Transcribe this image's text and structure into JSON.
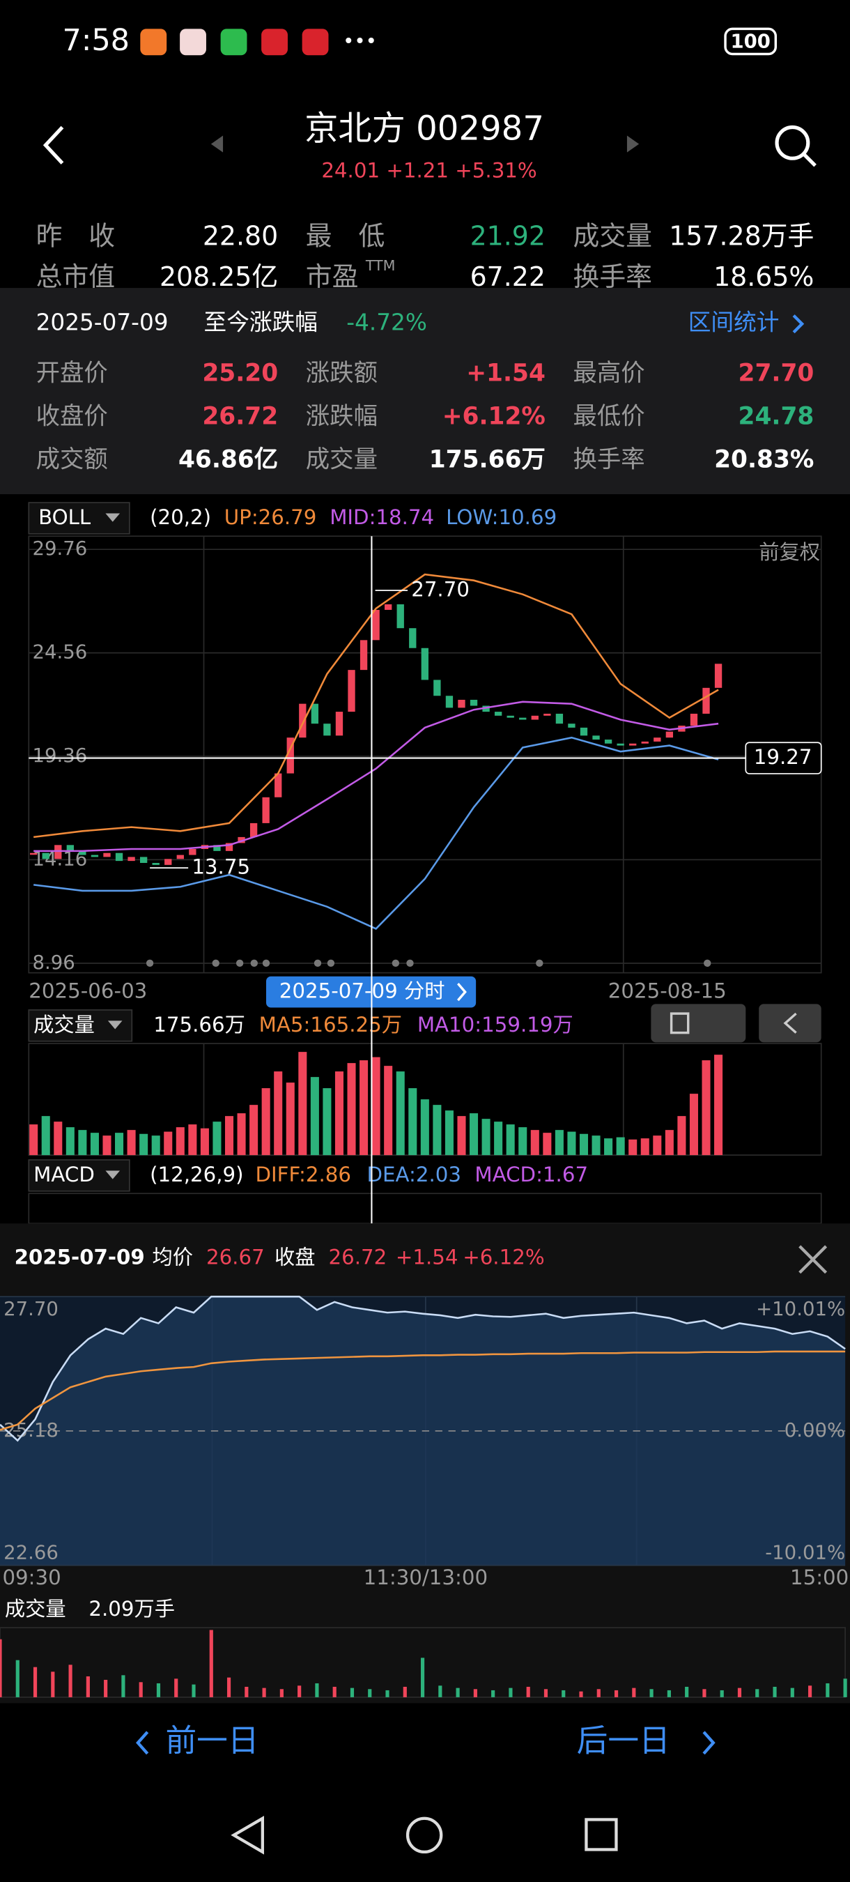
{
  "status_bar": {
    "time": "7:58",
    "battery": "100"
  },
  "header": {
    "title": "京北方 002987",
    "quote": "24.01 +1.21 +5.31%"
  },
  "summary": {
    "rows": [
      [
        "昨　收",
        "22.80",
        "最　低",
        "21.92",
        "成交量",
        "157.28万手"
      ],
      [
        "总市值",
        "208.25亿",
        "市盈",
        "67.22",
        "换手率",
        "18.65%"
      ]
    ],
    "ttm": "TTM"
  },
  "period": {
    "date": "2025-07-09",
    "label": "至今涨跌幅",
    "change": "-4.72%",
    "stats_link": "区间统计"
  },
  "day_stats": {
    "rows": [
      [
        "开盘价",
        "25.20",
        "涨跌额",
        "+1.54",
        "最高价",
        "27.70"
      ],
      [
        "收盘价",
        "26.72",
        "涨跌幅",
        "+6.12%",
        "最低价",
        "24.78"
      ],
      [
        "成交额",
        "46.86亿",
        "成交量",
        "175.66万",
        "换手率",
        "20.83%"
      ]
    ]
  },
  "kline": {
    "indicator": "BOLL",
    "params": "(20,2)",
    "up": "UP:26.79",
    "mid": "MID:18.74",
    "low": "LOW:10.69",
    "adjust": "前复权",
    "ylim": [
      8.96,
      29.76
    ],
    "yticks": [
      29.76,
      24.56,
      19.36,
      14.16,
      8.96
    ],
    "crosshair_value": 19.27,
    "high_label": {
      "value": 27.7,
      "label": "27.70"
    },
    "low_label": 13.75,
    "xlabels": [
      "2025-06-03",
      "2025-08-15"
    ],
    "selected": "2025-07-09 分时",
    "closes": [
      14.5,
      14.2,
      14.9,
      14.6,
      14.4,
      14.3,
      14.5,
      14.1,
      14.3,
      14.0,
      13.9,
      14.2,
      14.4,
      14.7,
      14.9,
      14.6,
      15.0,
      15.3,
      16.0,
      17.3,
      18.5,
      20.3,
      22.0,
      21.0,
      20.4,
      21.6,
      23.7,
      25.2,
      26.72,
      27.0,
      25.8,
      24.8,
      23.2,
      22.4,
      21.8,
      22.2,
      21.9,
      21.6,
      21.4,
      21.3,
      21.2,
      21.4,
      21.5,
      21.0,
      20.8,
      20.4,
      20.2,
      20.0,
      19.9,
      20.0,
      20.1,
      20.3,
      20.6,
      20.9,
      21.5,
      22.8,
      24.01
    ],
    "boll_x": [
      0,
      4,
      8,
      12,
      16,
      20,
      24,
      28,
      32,
      36,
      40,
      44,
      48,
      52,
      56
    ],
    "boll": [
      {
        "name": "UP",
        "color": "#f08a3a",
        "values": [
          15.3,
          15.6,
          15.8,
          15.6,
          16.0,
          18.5,
          23.5,
          26.79,
          28.5,
          28.2,
          27.5,
          26.5,
          23.0,
          21.3,
          22.7
        ]
      },
      {
        "name": "MID",
        "color": "#c25be6",
        "values": [
          14.6,
          14.6,
          14.7,
          14.7,
          14.9,
          15.7,
          17.2,
          18.74,
          20.8,
          21.7,
          22.1,
          22.0,
          21.2,
          20.7,
          21.0
        ]
      },
      {
        "name": "LOW",
        "color": "#5a9ae8",
        "values": [
          12.9,
          12.6,
          12.6,
          12.8,
          13.4,
          12.6,
          11.8,
          10.69,
          13.2,
          16.8,
          19.8,
          20.3,
          19.6,
          19.9,
          19.2
        ]
      }
    ]
  },
  "volume": {
    "label": "成交量",
    "value": "175.66万",
    "ma5": "MA5:165.25万",
    "ma10": "MA10:159.19万",
    "ylim": [
      0,
      200
    ],
    "values": [
      55,
      70,
      60,
      50,
      45,
      40,
      35,
      40,
      45,
      38,
      35,
      42,
      50,
      55,
      48,
      60,
      70,
      75,
      90,
      120,
      150,
      130,
      185,
      140,
      120,
      150,
      165,
      170,
      175.66,
      160,
      150,
      120,
      100,
      90,
      80,
      70,
      75,
      65,
      60,
      55,
      50,
      45,
      40,
      45,
      42,
      38,
      35,
      30,
      32,
      28,
      30,
      35,
      45,
      70,
      110,
      170,
      180
    ]
  },
  "macd": {
    "label": "MACD",
    "params": "(12,26,9)",
    "diff": "DIFF:2.86",
    "dea": "DEA:2.03",
    "macd": "MACD:1.67"
  },
  "intraday": {
    "date": "2025-07-09",
    "avg_label": "均价",
    "avg": "26.67",
    "close_label": "收盘",
    "close": "26.72",
    "change": "+1.54",
    "pct": "+6.12%",
    "ylim": [
      22.66,
      27.7
    ],
    "yticks": [
      {
        "value": 27.7,
        "label": "27.70"
      },
      25.18,
      22.66
    ],
    "pct_labels": [
      "+10.01%",
      "0.00%",
      "-10.01%"
    ],
    "xlabels": [
      "09:30",
      "11:30/13:00",
      "15:00"
    ],
    "volume_label": "成交量",
    "volume_value": "2.09万手",
    "prices": [
      25.3,
      25.0,
      25.4,
      26.1,
      26.6,
      26.9,
      27.1,
      27.0,
      27.3,
      27.2,
      27.5,
      27.4,
      27.7,
      27.7,
      27.7,
      27.7,
      27.7,
      27.7,
      27.45,
      27.6,
      27.5,
      27.45,
      27.4,
      27.42,
      27.38,
      27.35,
      27.3,
      27.36,
      27.33,
      27.32,
      27.35,
      27.38,
      27.3,
      27.34,
      27.36,
      27.38,
      27.4,
      27.35,
      27.3,
      27.2,
      27.25,
      27.1,
      27.2,
      27.15,
      27.1,
      27.0,
      27.05,
      26.95,
      26.72
    ],
    "avgs": [
      25.2,
      25.3,
      25.6,
      25.8,
      26.0,
      26.1,
      26.2,
      26.25,
      26.3,
      26.33,
      26.36,
      26.38,
      26.45,
      26.48,
      26.5,
      26.52,
      26.53,
      26.54,
      26.55,
      26.56,
      26.57,
      26.58,
      26.58,
      26.59,
      26.6,
      26.6,
      26.61,
      26.61,
      26.62,
      26.62,
      26.63,
      26.63,
      26.63,
      26.64,
      26.64,
      26.64,
      26.65,
      26.65,
      26.65,
      26.65,
      26.66,
      26.66,
      26.66,
      26.66,
      26.67,
      26.67,
      26.67,
      26.67,
      26.67
    ],
    "vol_ylim": [
      0,
      6000
    ],
    "volumes": [
      5000,
      3200,
      2600,
      2200,
      2800,
      1800,
      1500,
      1900,
      1300,
      1200,
      1600,
      1100,
      5800,
      1700,
      900,
      800,
      700,
      1000,
      1200,
      900,
      800,
      700,
      600,
      900,
      3400,
      1000,
      800,
      700,
      600,
      800,
      900,
      700,
      600,
      500,
      700,
      600,
      800,
      700,
      600,
      900,
      700,
      600,
      800,
      700,
      900,
      800,
      1000,
      1200,
      1600
    ]
  },
  "nav": {
    "prev": "前一日",
    "next": "后一日"
  }
}
